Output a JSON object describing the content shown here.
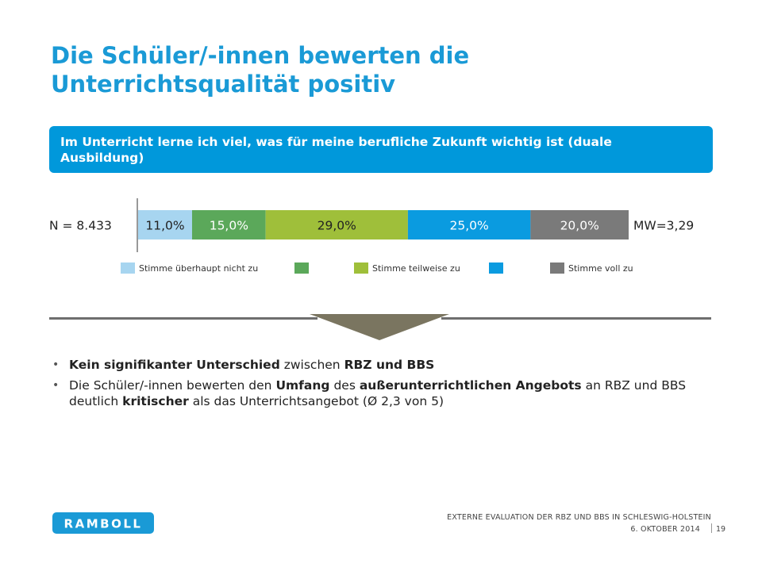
{
  "title": {
    "line1": "Die Schüler/-innen bewerten die",
    "line2": "Unterrichtsqualität positiv"
  },
  "question": "Im Unterricht lerne ich viel, was für meine berufliche Zukunft wichtig ist (duale Ausbildung)",
  "chart_data": {
    "type": "bar",
    "orientation": "horizontal-stacked-100",
    "categories": [
      "Stimme überhaupt nicht zu",
      "",
      "Stimme teilweise zu",
      "",
      "Stimme voll zu"
    ],
    "values": [
      11.0,
      15.0,
      29.0,
      25.0,
      20.0
    ],
    "value_labels": [
      "11,0%",
      "15,0%",
      "29,0%",
      "25,0%",
      "20,0%"
    ],
    "colors": [
      "#a7d5f0",
      "#5ba85a",
      "#9fbf3a",
      "#0a9be0",
      "#7a7a7a"
    ],
    "label_colors": [
      "#222222",
      "#ffffff",
      "#222222",
      "#ffffff",
      "#ffffff"
    ],
    "left_label": "N = 8.433",
    "right_label": "MW=3,29",
    "legend": "bottom"
  },
  "bullets": [
    [
      {
        "t": "Kein signifikanter Unterschied",
        "b": true
      },
      {
        "t": " zwischen ",
        "b": false
      },
      {
        "t": "RBZ und BBS",
        "b": true
      }
    ],
    [
      {
        "t": "Die Schüler/-innen bewerten den ",
        "b": false
      },
      {
        "t": "Umfang",
        "b": true
      },
      {
        "t": " des ",
        "b": false
      },
      {
        "t": "außerunterrichtlichen Angebots",
        "b": true
      },
      {
        "t": " an RBZ und BBS deutlich ",
        "b": false
      },
      {
        "t": "kritischer",
        "b": true
      },
      {
        "t": " als das Unterrichtsangebot (Ø 2,3 von 5)",
        "b": false
      }
    ]
  ],
  "footer": {
    "logo_text": "RAMBOLL",
    "doc_title": "EXTERNE EVALUATION DER RBZ UND BBS IN SCHLESWIG-HOLSTEIN",
    "date": "6. OKTOBER 2014",
    "page": "19"
  },
  "colors": {
    "accent": "#1a9ad6",
    "question_bg": "#0098db",
    "divider": "#6e6e6e"
  }
}
